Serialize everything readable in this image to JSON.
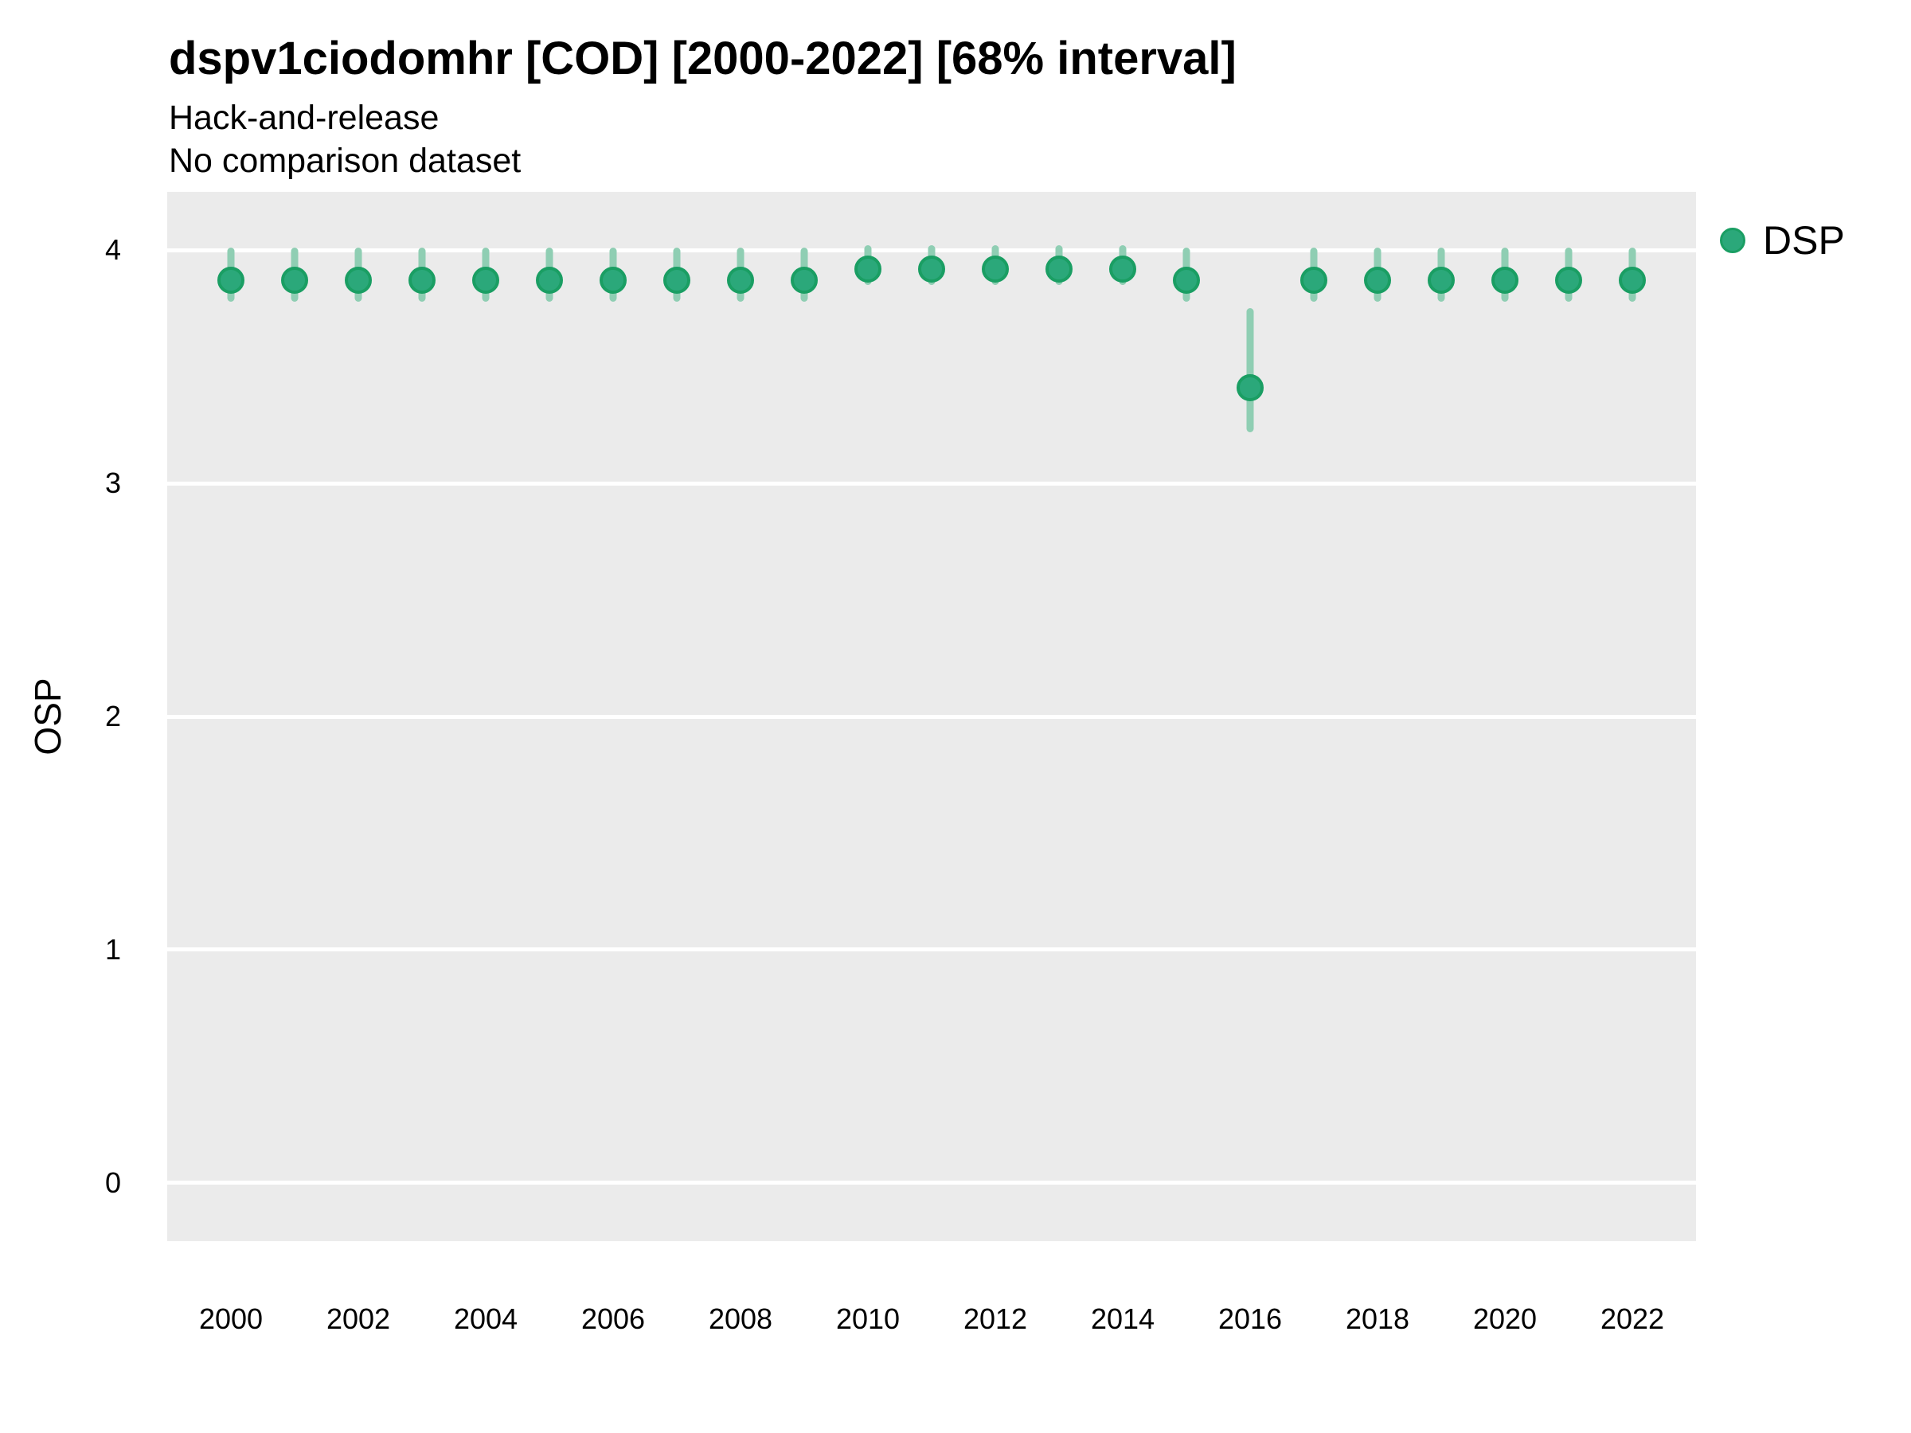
{
  "header": {
    "title": "dspv1ciodomhr [COD] [2000-2022] [68% interval]",
    "subtitle1": "Hack-and-release",
    "subtitle2": "No comparison dataset"
  },
  "legend": {
    "label": "DSP",
    "position": "right"
  },
  "colors": {
    "point_fill": "#2ba87a",
    "point_stroke": "#1a9e63",
    "errorbar": "#8fceb3",
    "panel_bg": "#ebebeb",
    "gridline": "#ffffff",
    "text": "#000000"
  },
  "chart_data": {
    "type": "scatter",
    "title": "dspv1ciodomhr [COD] [2000-2022] [68% interval]",
    "subtitle": "Hack-and-release / No comparison dataset",
    "interval": "68%",
    "xlabel": "",
    "ylabel": "OSP",
    "xlim": [
      1999,
      2023
    ],
    "ylim": [
      -0.25,
      4.25
    ],
    "x_ticks": [
      2000,
      2002,
      2004,
      2006,
      2008,
      2010,
      2012,
      2014,
      2016,
      2018,
      2020,
      2022
    ],
    "y_ticks": [
      0,
      1,
      2,
      3,
      4
    ],
    "grid": "major-horizontal-only",
    "legend_position": "right",
    "series": [
      {
        "name": "DSP",
        "x": [
          2000,
          2001,
          2002,
          2003,
          2004,
          2005,
          2006,
          2007,
          2008,
          2009,
          2010,
          2011,
          2012,
          2013,
          2014,
          2015,
          2016,
          2017,
          2018,
          2019,
          2020,
          2021,
          2022
        ],
        "y": [
          3.87,
          3.87,
          3.87,
          3.87,
          3.87,
          3.87,
          3.87,
          3.87,
          3.87,
          3.87,
          3.92,
          3.92,
          3.92,
          3.92,
          3.92,
          3.87,
          3.41,
          3.87,
          3.87,
          3.87,
          3.87,
          3.87,
          3.87
        ],
        "lo": [
          3.78,
          3.78,
          3.78,
          3.78,
          3.78,
          3.78,
          3.78,
          3.78,
          3.78,
          3.78,
          3.85,
          3.85,
          3.85,
          3.85,
          3.85,
          3.78,
          3.22,
          3.78,
          3.78,
          3.78,
          3.78,
          3.78,
          3.78
        ],
        "hi": [
          4.01,
          4.01,
          4.01,
          4.01,
          4.01,
          4.01,
          4.01,
          4.01,
          4.01,
          4.01,
          4.02,
          4.02,
          4.02,
          4.02,
          4.02,
          4.01,
          3.75,
          4.01,
          4.01,
          4.01,
          4.01,
          4.01,
          4.01
        ]
      }
    ]
  }
}
